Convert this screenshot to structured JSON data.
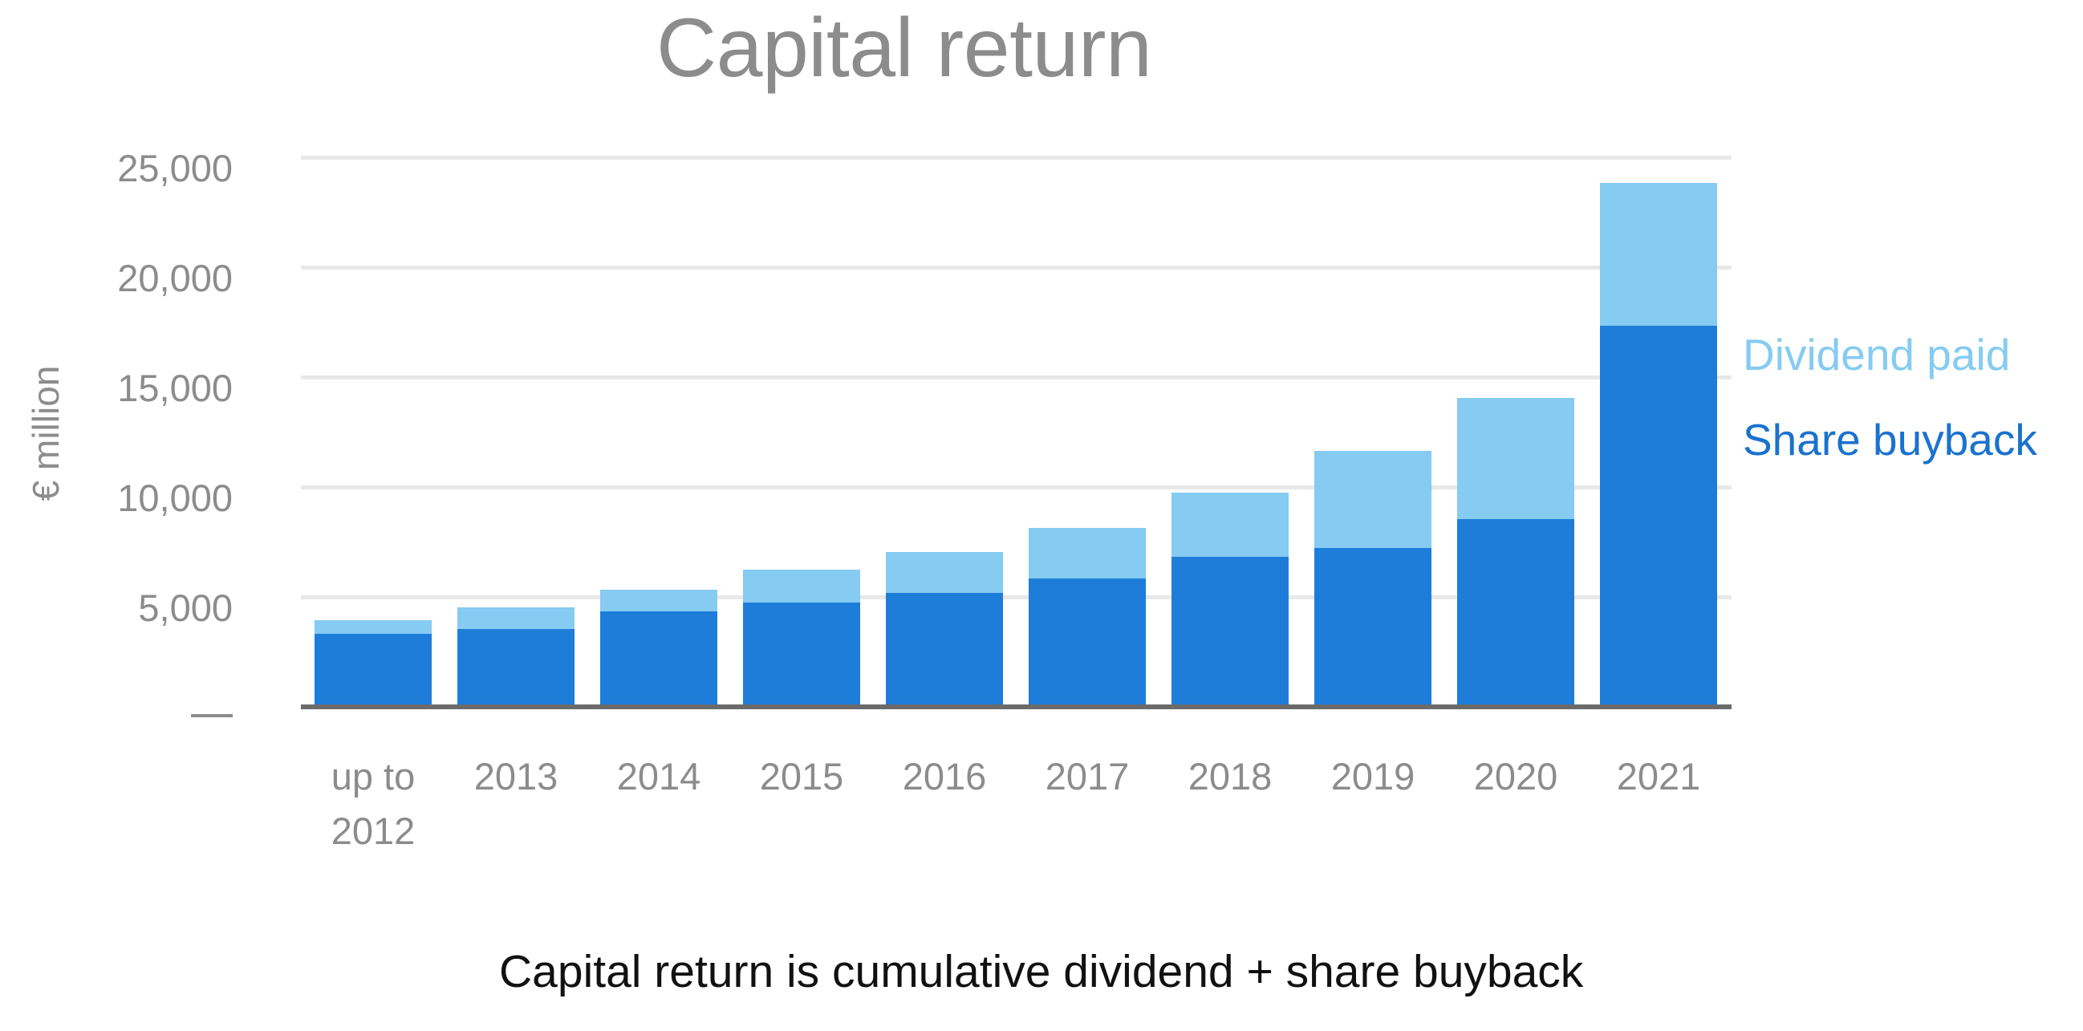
{
  "title": "Capital return",
  "footer": "Capital return is cumulative dividend + share buyback",
  "y_axis": {
    "label": "€ million",
    "ticks": [
      {
        "label": "25,000",
        "value": 25000
      },
      {
        "label": "20,000",
        "value": 20000
      },
      {
        "label": "15,000",
        "value": 15000
      },
      {
        "label": "10,000",
        "value": 10000
      },
      {
        "label": "5,000",
        "value": 5000
      }
    ],
    "zero_tick_label": "—"
  },
  "legend": {
    "dividend": {
      "label": "Dividend paid",
      "color": "#85CBF2"
    },
    "buyback": {
      "label": "Share buyback",
      "color": "#1E7DD9",
      "text_color": "#1A72CE"
    }
  },
  "colors": {
    "dividend": "#85CBF2",
    "buyback": "#1E7DD9",
    "gridline": "#E8E8E8",
    "axis": "#6B6B6B",
    "tick_text": "#8C8C8C"
  },
  "chart_data": {
    "type": "bar",
    "stacked": true,
    "title": "Capital return",
    "xlabel": "",
    "ylabel": "€ million",
    "ylim": [
      0,
      25000
    ],
    "yticks": [
      5000,
      10000,
      15000,
      20000,
      25000
    ],
    "grid": true,
    "legend_position": "right",
    "categories": [
      "up to\n2012",
      "2013",
      "2014",
      "2015",
      "2016",
      "2017",
      "2018",
      "2019",
      "2020",
      "2021"
    ],
    "series": [
      {
        "name": "Share buyback",
        "color": "#1E7DD9",
        "values": [
          3300,
          3500,
          4300,
          4700,
          5150,
          5800,
          6800,
          7200,
          8500,
          17300
        ]
      },
      {
        "name": "Dividend paid",
        "color": "#85CBF2",
        "values": [
          600,
          1000,
          1000,
          1500,
          1850,
          2300,
          2900,
          4400,
          5500,
          6500
        ]
      }
    ],
    "totals": [
      3900,
      4500,
      5300,
      6200,
      7000,
      8100,
      9700,
      11600,
      14000,
      23800
    ],
    "annotation": "Capital return is cumulative dividend + share buyback"
  }
}
